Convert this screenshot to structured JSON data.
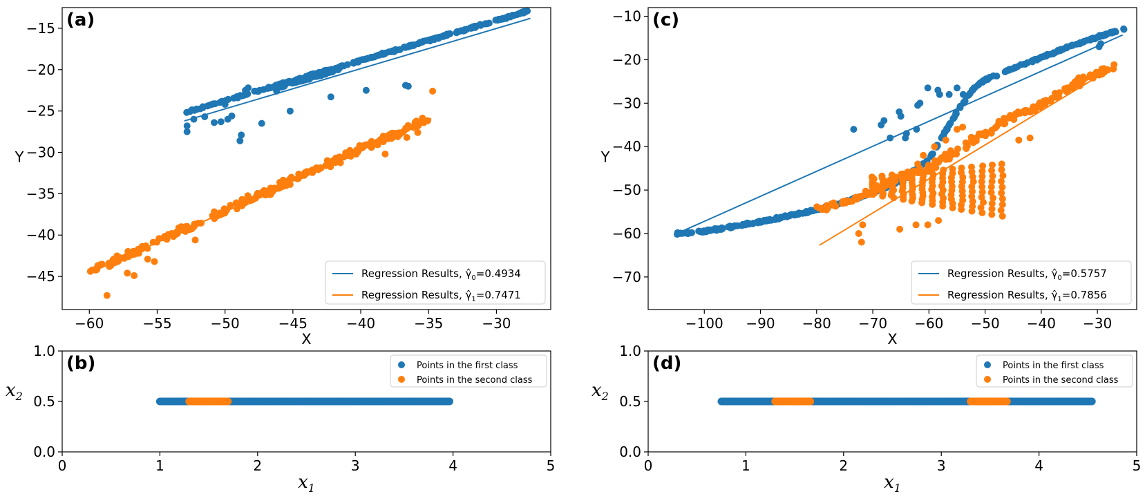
{
  "colors": {
    "class0": "#1f77b4",
    "class1": "#ff7f0e"
  },
  "chart_data": [
    {
      "id": "a",
      "panel_label": "(a)",
      "type": "scatter",
      "xlabel": "X",
      "ylabel": "Y",
      "xlim": [
        -62,
        -26
      ],
      "ylim": [
        -49,
        -12.5
      ],
      "xticks": [
        -60,
        -55,
        -50,
        -45,
        -40,
        -35,
        -30
      ],
      "xtick_labels": [
        "−60",
        "−55",
        "−50",
        "−45",
        "−40",
        "−35",
        "−30"
      ],
      "yticks": [
        -45,
        -40,
        -35,
        -30,
        -25,
        -20,
        -15
      ],
      "ytick_labels": [
        "−45",
        "−40",
        "−35",
        "−30",
        "−25",
        "−20",
        "−15"
      ],
      "legend": {
        "placement": "lower-right",
        "entries": [
          {
            "prefix": "Regression Results, ",
            "sym": "γ̂",
            "sub": "0",
            "value": "=0.4934"
          },
          {
            "prefix": "Regression Results, ",
            "sym": "γ̂",
            "sub": "1",
            "value": "=0.7471"
          }
        ]
      },
      "series": [
        {
          "name": "first class",
          "trend": {
            "x0": -53,
            "x1": -27.5,
            "slope": 0.485,
            "intercept": 0.5
          },
          "noise": 0.15,
          "outliers": [
            [
              -52.8,
              -26.8
            ],
            [
              -52.8,
              -27.5
            ],
            [
              -52.3,
              -26.0
            ],
            [
              -51.5,
              -25.7
            ],
            [
              -50.8,
              -26.4
            ],
            [
              -50.3,
              -26.3
            ],
            [
              -50.0,
              -24.2
            ],
            [
              -49.5,
              -25.6
            ],
            [
              -49.8,
              -26.0
            ],
            [
              -48.8,
              -27.9
            ],
            [
              -48.9,
              -28.6
            ],
            [
              -47.3,
              -26.5
            ],
            [
              -48.5,
              -22.5
            ],
            [
              -48.3,
              -22.2
            ],
            [
              -46.2,
              -22.6
            ],
            [
              -45.2,
              -25.0
            ],
            [
              -44.8,
              -21.4
            ],
            [
              -43.5,
              -20.5
            ],
            [
              -42.2,
              -23.3
            ],
            [
              -39.6,
              -22.5
            ],
            [
              -36.7,
              -21.9
            ],
            [
              -36.5,
              -22.0
            ]
          ]
        },
        {
          "name": "second class",
          "trend": {
            "x0": -60,
            "x1": -34.8,
            "slope": 0.746,
            "intercept": 0.2
          },
          "noise": 0.7,
          "outliers": [
            [
              -58.7,
              -47.3
            ],
            [
              -57.2,
              -44.6
            ],
            [
              -56.7,
              -44.9
            ],
            [
              -55.7,
              -42.9
            ],
            [
              -55.2,
              -43.2
            ],
            [
              -52.2,
              -40.6
            ],
            [
              -38.2,
              -30.2
            ],
            [
              -36.6,
              -28.2
            ],
            [
              -35.8,
              -27.6
            ],
            [
              -34.7,
              -22.6
            ]
          ]
        }
      ],
      "fit_lines": [
        {
          "name": "Regression Results 0",
          "x": [
            -53,
            -27.5
          ],
          "y": [
            -26.2,
            -13.8
          ]
        },
        {
          "name": "Regression Results 1",
          "x": [
            -60,
            -34.8
          ],
          "y": [
            -44.6,
            -25.9
          ]
        }
      ]
    },
    {
      "id": "b",
      "panel_label": "(b)",
      "type": "scatter",
      "xlabel": "x",
      "xlabel_sub": "1",
      "ylabel": "x",
      "ylabel_sub": "2",
      "xlim": [
        0,
        5
      ],
      "ylim": [
        0,
        1
      ],
      "xticks": [
        0,
        1,
        2,
        3,
        4,
        5
      ],
      "xtick_labels": [
        "0",
        "1",
        "2",
        "3",
        "4",
        "5"
      ],
      "yticks": [
        0,
        0.5,
        1
      ],
      "ytick_labels": [
        "0.0",
        "0.5",
        "1.0"
      ],
      "legend": {
        "placement": "top-right",
        "entries": [
          "Points in the first class",
          "Points in the second class"
        ]
      },
      "series": [
        {
          "name": "Points in the first class",
          "x_range": [
            1.0,
            3.97
          ],
          "y": 0.5
        },
        {
          "name": "Points in the second class",
          "x_ranges": [
            [
              1.3,
              1.7
            ]
          ],
          "y": 0.5
        }
      ]
    },
    {
      "id": "c",
      "panel_label": "(c)",
      "type": "scatter",
      "xlabel": "X",
      "ylabel": "Y",
      "xlim": [
        -110,
        -23
      ],
      "ylim": [
        -77.5,
        -8
      ],
      "xticks": [
        -100,
        -90,
        -80,
        -70,
        -60,
        -50,
        -40,
        -30
      ],
      "xtick_labels": [
        "−100",
        "−90",
        "−80",
        "−70",
        "−60",
        "−50",
        "−40",
        "−30"
      ],
      "yticks": [
        -70,
        -60,
        -50,
        -40,
        -30,
        -20,
        -10
      ],
      "ytick_labels": [
        "−70",
        "−60",
        "−50",
        "−40",
        "−30",
        "−20",
        "−10"
      ],
      "legend": {
        "placement": "lower-right",
        "entries": [
          {
            "prefix": "Regression Results, ",
            "sym": "γ̂",
            "sub": "0",
            "value": "=0.5757"
          },
          {
            "prefix": "Regression Results, ",
            "sym": "γ̂",
            "sub": "1",
            "value": "=0.7856"
          }
        ]
      },
      "series": [
        {
          "name": "first class",
          "curve": [
            [
              -105,
              -60
            ],
            [
              -100,
              -59.5
            ],
            [
              -95,
              -58.4
            ],
            [
              -90,
              -57.3
            ],
            [
              -85,
              -56
            ],
            [
              -80,
              -54.5
            ],
            [
              -75,
              -52.8
            ],
            [
              -70,
              -50.5
            ],
            [
              -65,
              -48
            ],
            [
              -60,
              -43
            ],
            [
              -55,
              -32
            ],
            [
              -52,
              -26.5
            ],
            [
              -50,
              -24.6
            ],
            [
              -45,
              -22
            ],
            [
              -40,
              -19.5
            ],
            [
              -35,
              -17
            ],
            [
              -30,
              -14.8
            ],
            [
              -25,
              -12.8
            ]
          ],
          "noise": 0.35,
          "outliers": [
            [
              -73.4,
              -36
            ],
            [
              -68.5,
              -35
            ],
            [
              -68.0,
              -34
            ],
            [
              -66.9,
              -38
            ],
            [
              -65.3,
              -32
            ],
            [
              -65.0,
              -33
            ],
            [
              -64.2,
              -38
            ],
            [
              -64.0,
              -37
            ],
            [
              -62.2,
              -36
            ],
            [
              -62.0,
              -30.5
            ],
            [
              -61.6,
              -30
            ],
            [
              -60.2,
              -26.5
            ],
            [
              -58.4,
              -27
            ],
            [
              -58.1,
              -28
            ],
            [
              -56.4,
              -28
            ],
            [
              -55.0,
              -26.5
            ],
            [
              -53.9,
              -28
            ],
            [
              -29.7,
              -17
            ],
            [
              -29.4,
              -16.3
            ]
          ]
        },
        {
          "name": "second class",
          "curve": [
            [
              -80,
              -54.5
            ],
            [
              -75,
              -53
            ],
            [
              -70,
              -50
            ],
            [
              -65,
              -47
            ],
            [
              -60,
              -45
            ],
            [
              -55,
              -41
            ],
            [
              -50,
              -37
            ],
            [
              -45,
              -33
            ],
            [
              -40,
              -30.5
            ],
            [
              -35,
              -26
            ],
            [
              -27,
              -21.5
            ]
          ],
          "noise": 0.6,
          "fan": {
            "x0": -70,
            "x1": -47,
            "ytop": -44,
            "ybot": -58
          },
          "outliers": [
            [
              -72.5,
              -60
            ],
            [
              -72.0,
              -62
            ],
            [
              -71.8,
              -58
            ],
            [
              -65.2,
              -59
            ],
            [
              -62.3,
              -58
            ],
            [
              -60.2,
              -58
            ],
            [
              -58.3,
              -57
            ],
            [
              -62,
              -44
            ],
            [
              -61,
              -42
            ],
            [
              -59,
              -40
            ],
            [
              -57,
              -38.5
            ],
            [
              -55,
              -36
            ],
            [
              -54,
              -35.5
            ],
            [
              -44,
              -38.5
            ],
            [
              -42,
              -38
            ]
          ]
        }
      ],
      "fit_lines": [
        {
          "name": "Regression Results 0",
          "x": [
            -104,
            -25.5
          ],
          "y": [
            -59.5,
            -14.3
          ]
        },
        {
          "name": "Regression Results 1",
          "x": [
            -79.5,
            -27
          ],
          "y": [
            -62.7,
            -21.6
          ]
        }
      ]
    },
    {
      "id": "d",
      "panel_label": "(d)",
      "type": "scatter",
      "xlabel": "x",
      "xlabel_sub": "1",
      "ylabel": "x",
      "ylabel_sub": "2",
      "xlim": [
        0,
        5
      ],
      "ylim": [
        0,
        1
      ],
      "xticks": [
        0,
        1,
        2,
        3,
        4,
        5
      ],
      "xtick_labels": [
        "0",
        "1",
        "2",
        "3",
        "4",
        "5"
      ],
      "yticks": [
        0,
        0.5,
        1
      ],
      "ytick_labels": [
        "0.0",
        "0.5",
        "1.0"
      ],
      "legend": {
        "placement": "top-right",
        "entries": [
          "Points in the first class",
          "Points in the second class"
        ]
      },
      "series": [
        {
          "name": "Points in the first class",
          "x_range": [
            0.75,
            4.55
          ],
          "y": 0.5
        },
        {
          "name": "Points in the second class",
          "x_ranges": [
            [
              1.3,
              1.67
            ],
            [
              3.3,
              3.68
            ]
          ],
          "y": 0.5
        }
      ]
    }
  ]
}
